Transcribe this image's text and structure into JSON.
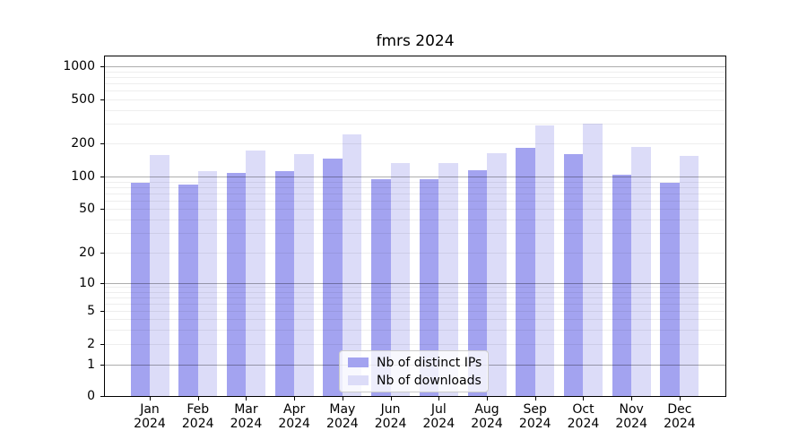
{
  "chart_data": {
    "type": "bar",
    "title": "fmrs 2024",
    "categories": [
      "Jan",
      "Feb",
      "Mar",
      "Apr",
      "May",
      "Jun",
      "Jul",
      "Aug",
      "Sep",
      "Oct",
      "Nov",
      "Dec"
    ],
    "year_label": "2024",
    "series": [
      {
        "name": "Nb of distinct IPs",
        "color": "#a3a3f0",
        "values": [
          87,
          85,
          108,
          111,
          145,
          94,
          95,
          115,
          184,
          162,
          104,
          88
        ]
      },
      {
        "name": "Nb of downloads",
        "color": "#dcdcf8",
        "values": [
          158,
          112,
          175,
          161,
          243,
          133,
          133,
          165,
          290,
          303,
          188,
          156
        ]
      }
    ],
    "xlabel": "",
    "ylabel": "",
    "yscale": "symlog",
    "y_ticks": [
      0,
      1,
      2,
      5,
      10,
      20,
      50,
      100,
      200,
      500,
      1000
    ],
    "ylim": [
      0,
      1240
    ],
    "grid": true,
    "legend_position": "lower center"
  }
}
